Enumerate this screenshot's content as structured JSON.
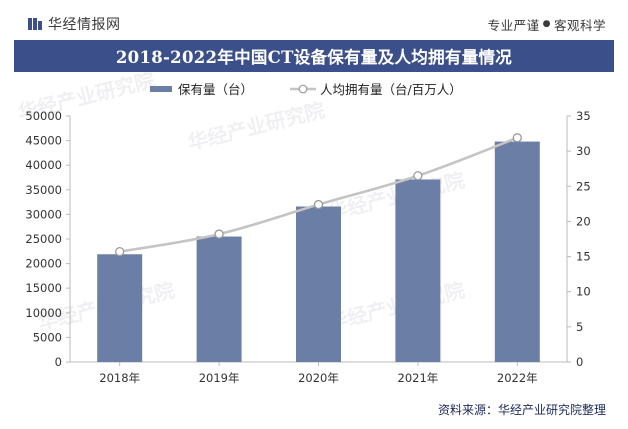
{
  "header": {
    "logo_text": "华经情报网",
    "slogan_left": "专业严谨",
    "slogan_right": "客观科学"
  },
  "chart_data": {
    "type": "bar",
    "title": "2018-2022年中国CT设备保有量及人均拥有量情况",
    "categories": [
      "2018年",
      "2019年",
      "2020年",
      "2021年",
      "2022年"
    ],
    "series": [
      {
        "name": "保有量（台）",
        "kind": "bar",
        "axis": "left",
        "color": "#6b7ea6",
        "values": [
          21900,
          25500,
          31600,
          37100,
          44800
        ]
      },
      {
        "name": "人均拥有量（台/百万人）",
        "kind": "line",
        "axis": "right",
        "color": "#c4c4c4",
        "values": [
          15.7,
          18.2,
          22.4,
          26.5,
          31.9
        ]
      }
    ],
    "y_left": {
      "min": 0,
      "max": 50000,
      "ticks": [
        0,
        5000,
        10000,
        15000,
        20000,
        25000,
        30000,
        35000,
        40000,
        45000,
        50000
      ]
    },
    "y_right": {
      "min": 0,
      "max": 35,
      "ticks": [
        0,
        5,
        10,
        15,
        20,
        25,
        30,
        35
      ]
    },
    "grid": false,
    "legend_position": "top-center"
  },
  "watermark": {
    "text": "华经产业研究院"
  },
  "footer": {
    "source": "资料来源：华经产业研究院整理"
  }
}
